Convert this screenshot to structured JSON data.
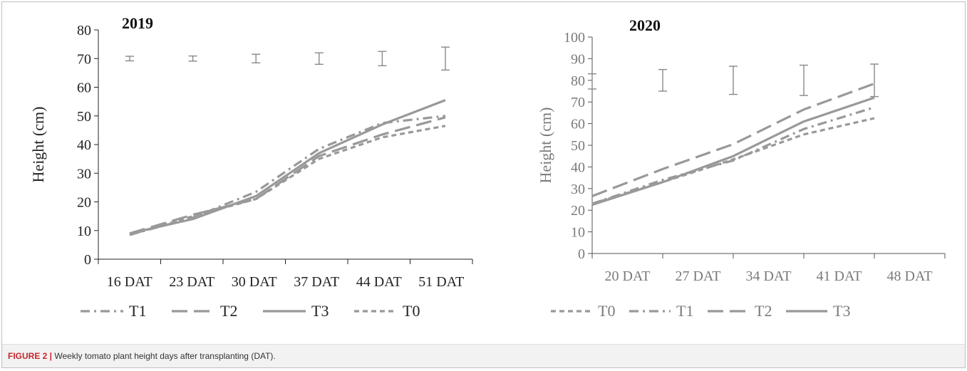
{
  "caption": {
    "label": "FIGURE 2 |",
    "text": " Weekly tomato plant height days after transplanting (DAT)."
  },
  "colors": {
    "line": "#999999",
    "axis2019": "#222222",
    "axis2020": "#555555",
    "label2020": "#7a7a7a"
  },
  "chart_data": [
    {
      "type": "line",
      "title": "2019",
      "ylabel": "Height (cm)",
      "xlabel": "",
      "ylim": [
        0,
        80
      ],
      "yticks": [
        0,
        10,
        20,
        30,
        40,
        50,
        60,
        70,
        80
      ],
      "categories": [
        "16 DAT",
        "23 DAT",
        "30 DAT",
        "37 DAT",
        "44 DAT",
        "51 DAT"
      ],
      "grid": false,
      "legend_position": "bottom",
      "series": [
        {
          "name": "T1",
          "dash": "dash-dot",
          "values": [
            8.5,
            14.5,
            23.5,
            38.5,
            47.5,
            50.0
          ]
        },
        {
          "name": "T2",
          "dash": "long-dash",
          "values": [
            9.0,
            15.5,
            21.0,
            36.0,
            43.5,
            49.5
          ]
        },
        {
          "name": "T3",
          "dash": "solid",
          "values": [
            9.0,
            14.0,
            22.0,
            37.0,
            47.0,
            55.5
          ]
        },
        {
          "name": "T0",
          "dash": "short-dash",
          "values": [
            8.5,
            15.0,
            21.0,
            35.0,
            42.5,
            46.5
          ]
        }
      ],
      "error_bars": [
        {
          "center": 70.0,
          "half": 0.8
        },
        {
          "center": 70.0,
          "half": 0.9
        },
        {
          "center": 70.0,
          "half": 1.5
        },
        {
          "center": 70.0,
          "half": 2.0
        },
        {
          "center": 70.0,
          "half": 2.5
        },
        {
          "center": 70.0,
          "half": 4.0
        }
      ]
    },
    {
      "type": "line",
      "title": "2020",
      "ylabel": "Height (cm)",
      "xlabel": "",
      "ylim": [
        0,
        100
      ],
      "yticks": [
        0,
        10,
        20,
        30,
        40,
        50,
        60,
        70,
        80,
        90,
        100
      ],
      "categories": [
        "20 DAT",
        "27 DAT",
        "34 DAT",
        "41 DAT",
        "48 DAT"
      ],
      "grid": false,
      "legend_position": "bottom",
      "series": [
        {
          "name": "T0",
          "dash": "short-dash",
          "values": [
            23.0,
            33.0,
            43.5,
            55.0,
            62.5
          ]
        },
        {
          "name": "T1",
          "dash": "dash-dot",
          "values": [
            23.0,
            34.0,
            43.0,
            57.5,
            67.5
          ]
        },
        {
          "name": "T2",
          "dash": "long-dash",
          "values": [
            26.5,
            39.0,
            50.5,
            66.5,
            78.5
          ]
        },
        {
          "name": "T3",
          "dash": "solid",
          "values": [
            22.5,
            33.0,
            45.0,
            61.0,
            72.0
          ]
        }
      ],
      "error_bars": [
        {
          "center": 79.5,
          "half": 3.5
        },
        {
          "center": 80.0,
          "half": 5.0
        },
        {
          "center": 80.0,
          "half": 6.5
        },
        {
          "center": 80.0,
          "half": 7.0
        },
        {
          "center": 80.0,
          "half": 7.5
        }
      ]
    }
  ]
}
